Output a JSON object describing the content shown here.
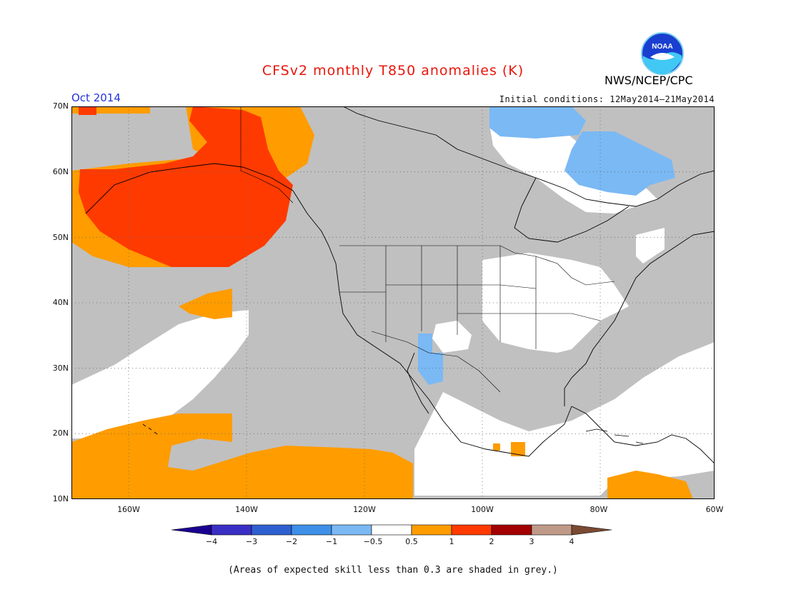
{
  "header": {
    "title": "CFSv2 monthly T850 anomalies (K)",
    "month": "Oct 2014",
    "initial_conditions": "Initial conditions: 12May2014–21May2014",
    "agency": "NWS/NCEP/CPC",
    "logo_text": "NOAA"
  },
  "axes": {
    "lat_labels": [
      "70N",
      "60N",
      "50N",
      "40N",
      "30N",
      "20N",
      "10N"
    ],
    "lon_labels": [
      "160W",
      "140W",
      "120W",
      "100W",
      "80W",
      "60W"
    ]
  },
  "colorbar": {
    "labels": [
      "−4",
      "−3",
      "−2",
      "−1",
      "−0.5",
      "0.5",
      "1",
      "2",
      "3",
      "4"
    ],
    "colors": [
      "#3a2fc4",
      "#2e5fd0",
      "#3d8fe8",
      "#7ab9f4",
      "#ffffff",
      "#ff9c00",
      "#ff3a00",
      "#a30000",
      "#c09a88"
    ],
    "under_color": "#1a0090",
    "over_color": "#7a4a32"
  },
  "legend_colors": {
    "grey_low_skill": "#c0c0c0",
    "orange": "#ff9c00",
    "red": "#ff3a00",
    "light_blue": "#7ab9f4"
  },
  "footnote": "(Areas of expected skill less than 0.3 are shaded in grey.)"
}
